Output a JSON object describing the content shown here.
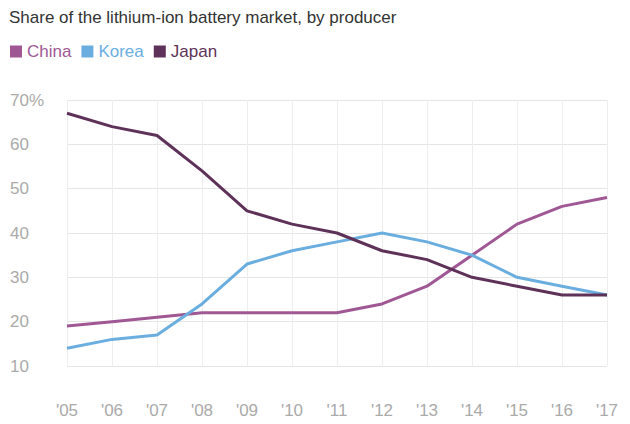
{
  "chart_data": {
    "type": "line",
    "title": "Share of the lithium-ion battery market, by producer",
    "categories": [
      "'05",
      "'06",
      "'07",
      "'08",
      "'09",
      "'10",
      "'11",
      "'12",
      "'13",
      "'14",
      "'15",
      "'16",
      "'17"
    ],
    "series": [
      {
        "name": "China",
        "color": "#a05895",
        "values": [
          19,
          20,
          21,
          22,
          22,
          22,
          22,
          24,
          28,
          35,
          42,
          46,
          48
        ]
      },
      {
        "name": "Korea",
        "color": "#6aaee0",
        "values": [
          14,
          16,
          17,
          24,
          33,
          36,
          38,
          40,
          38,
          35,
          30,
          28,
          26
        ]
      },
      {
        "name": "Japan",
        "color": "#5e3258",
        "values": [
          67,
          64,
          62,
          54,
          45,
          42,
          40,
          36,
          34,
          30,
          28,
          26,
          26
        ]
      }
    ],
    "ylim": [
      10,
      70
    ],
    "yticks": [
      10,
      20,
      30,
      40,
      50,
      60,
      {
        "value": 70,
        "label": "70%"
      }
    ],
    "grid": true,
    "legend": "top-left"
  }
}
